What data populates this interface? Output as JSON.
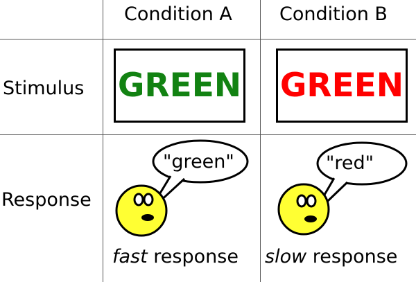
{
  "columns": {
    "a": "Condition A",
    "b": "Condition B"
  },
  "rows": {
    "stimulus": "Stimulus",
    "response": "Response"
  },
  "stimuli": {
    "a": {
      "word": "GREEN",
      "ink_color": "#128212"
    },
    "b": {
      "word": "GREEN",
      "ink_color": "#ff0000"
    }
  },
  "responses": {
    "a": {
      "speech": "\"green\"",
      "speed_word": "fast",
      "suffix": " response"
    },
    "b": {
      "speech": "\"red\"",
      "speed_word": "slow",
      "suffix": " response"
    }
  },
  "colors": {
    "face_fill": "#ffff33",
    "grid_line": "#555555"
  }
}
